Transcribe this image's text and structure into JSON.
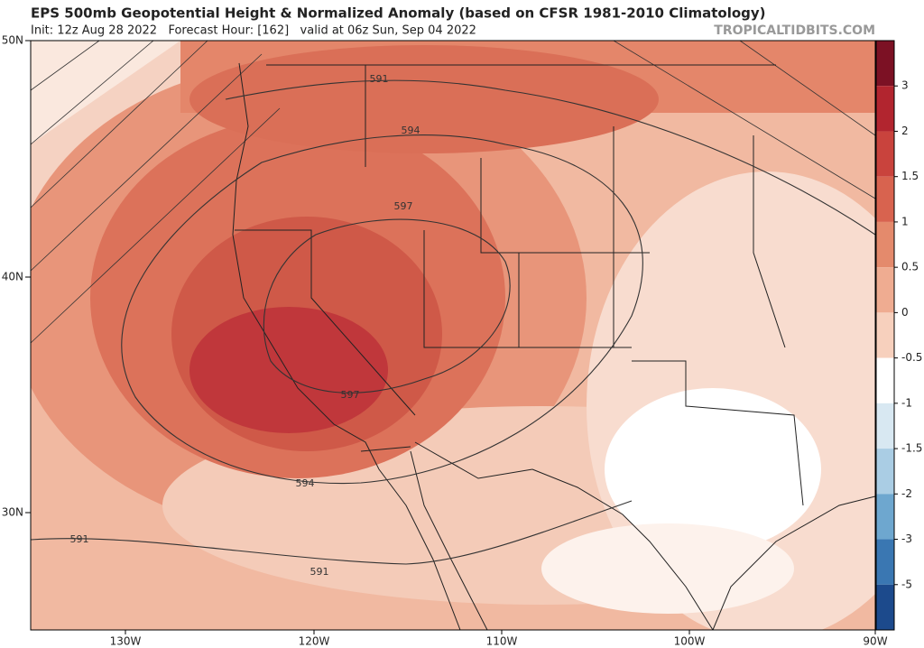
{
  "header": {
    "title": "EPS 500mb Geopotential Height & Normalized Anomaly (based on CFSR 1981-2010 Climatology)",
    "subtitle": "Init: 12z Aug 28 2022   Forecast Hour: [162]   valid at 06z Sun, Sep 04 2022",
    "watermark": "TROPICALTIDBITS.COM"
  },
  "map": {
    "lat_labels": [
      "50N",
      "40N",
      "30N"
    ],
    "lon_labels": [
      "130W",
      "120W",
      "110W",
      "100W",
      "90W"
    ],
    "contour_labels": [
      591,
      594,
      597,
      597,
      594,
      591,
      591
    ]
  },
  "colorbar": {
    "ticks": [
      3,
      2,
      1.5,
      1,
      0.5,
      0,
      -0.5,
      -1,
      -1.5,
      -2,
      -3,
      -5
    ],
    "colors": [
      "#7c1124",
      "#b2252f",
      "#c9433d",
      "#d8634f",
      "#e48a6c",
      "#efac91",
      "#f7d0bd",
      "#ffffff",
      "#d8e8f2",
      "#aacde4",
      "#6ea7cf",
      "#3a77b2",
      "#1c4a8c",
      "#0c2a66"
    ]
  }
}
